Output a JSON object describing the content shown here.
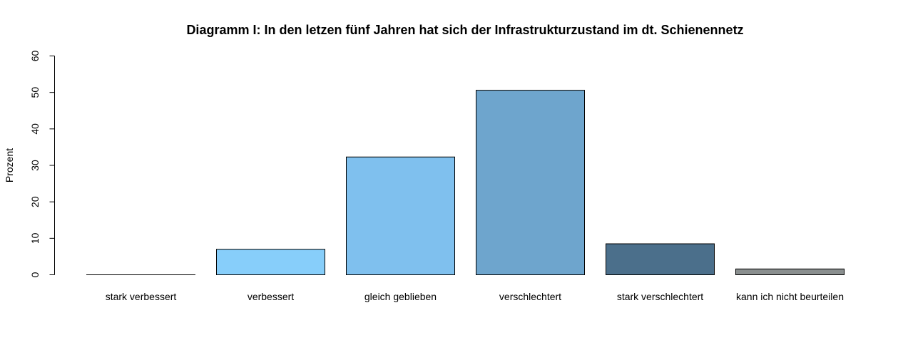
{
  "chart_data": {
    "type": "bar",
    "title": "Diagramm I: In den letzen fünf Jahren hat sich der Infrastrukturzustand im dt. Schienennetz",
    "xlabel": "",
    "ylabel": "Prozent",
    "categories": [
      "stark verbessert",
      "verbessert",
      "gleich geblieben",
      "verschlechtert",
      "stark verschlechtert",
      "kann ich nicht beurteilen"
    ],
    "values": [
      0,
      7,
      32.3,
      50.6,
      8.5,
      1.6
    ],
    "colors": [
      "#87CEFA",
      "#87CEFA",
      "#7FC0EE",
      "#6EA5CD",
      "#4B6F8B",
      "#8A8F8F"
    ],
    "ylim": [
      0,
      60
    ],
    "yticks": [
      0,
      10,
      20,
      30,
      40,
      50,
      60
    ],
    "grid": false,
    "legend": "none"
  }
}
